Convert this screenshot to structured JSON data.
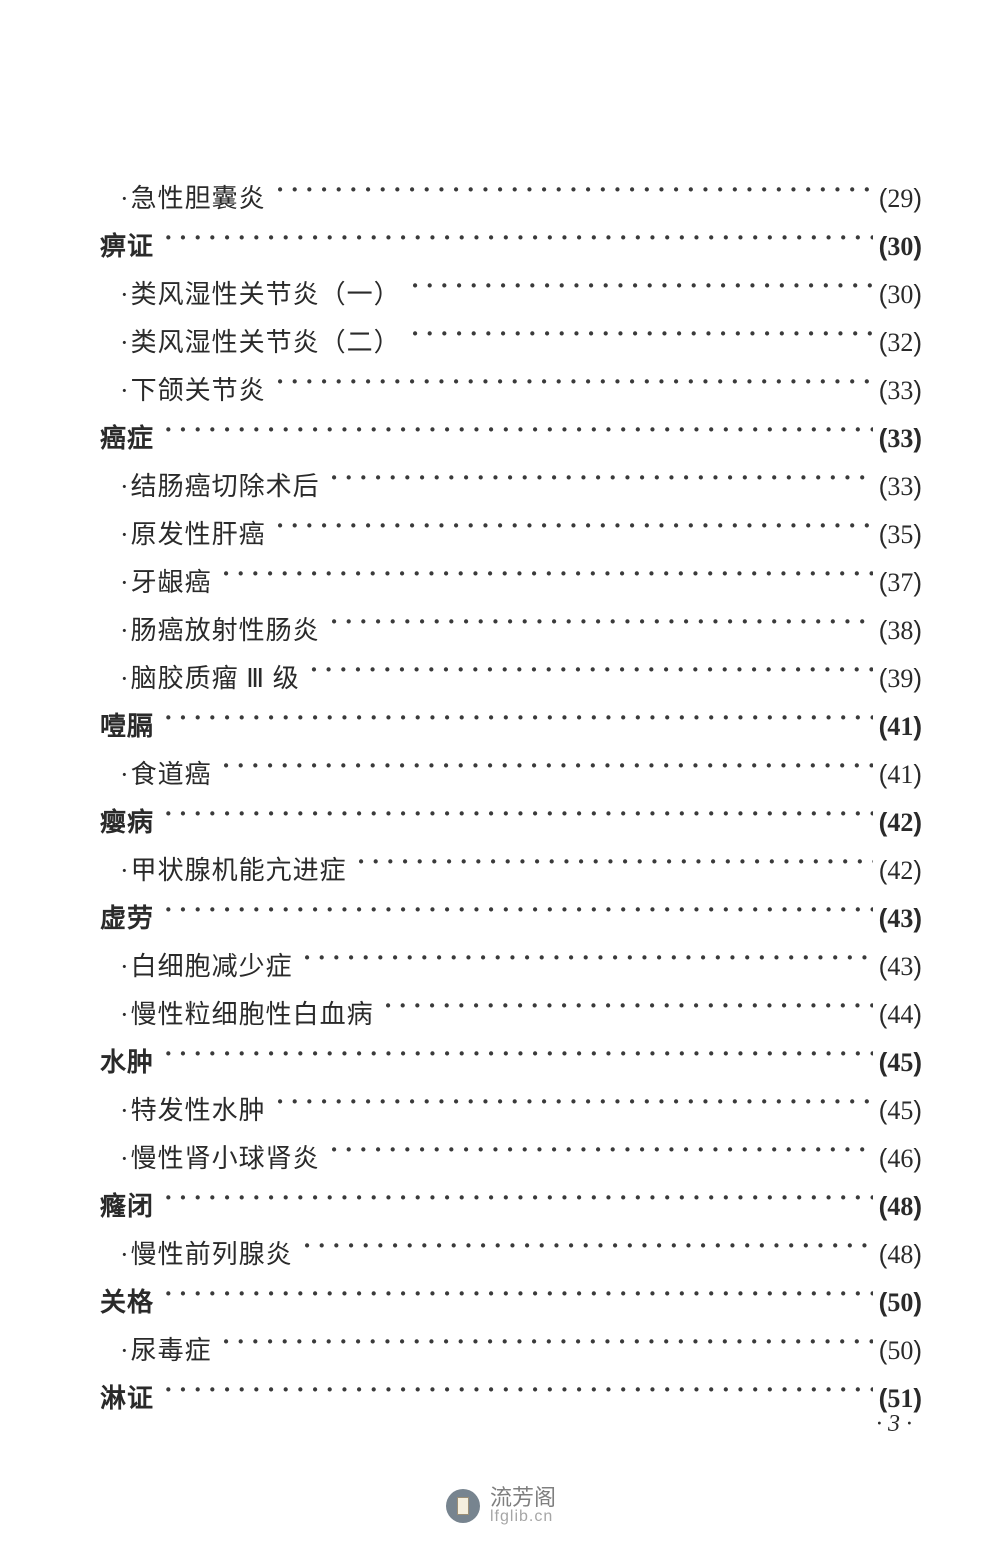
{
  "page": {
    "footer_page_number": "· 3 ·",
    "watermark": {
      "cn": "流芳阁",
      "en": "lfglib.cn"
    }
  },
  "toc": [
    {
      "kind": "item",
      "label": "急性胆囊炎",
      "page": "29"
    },
    {
      "kind": "section",
      "label": "痹证",
      "page": "30"
    },
    {
      "kind": "item",
      "label": "类风湿性关节炎（一）",
      "page": "30"
    },
    {
      "kind": "item",
      "label": "类风湿性关节炎（二）",
      "page": "32"
    },
    {
      "kind": "item",
      "label": "下颌关节炎",
      "page": "33"
    },
    {
      "kind": "section",
      "label": "癌症",
      "page": "33"
    },
    {
      "kind": "item",
      "label": "结肠癌切除术后",
      "page": "33"
    },
    {
      "kind": "item",
      "label": "原发性肝癌",
      "page": "35"
    },
    {
      "kind": "item",
      "label": "牙龈癌",
      "page": "37"
    },
    {
      "kind": "item",
      "label": "肠癌放射性肠炎",
      "page": "38"
    },
    {
      "kind": "item",
      "label": "脑胶质瘤 Ⅲ 级",
      "page": "39"
    },
    {
      "kind": "section",
      "label": "噎膈",
      "page": "41"
    },
    {
      "kind": "item",
      "label": "食道癌",
      "page": "41"
    },
    {
      "kind": "section",
      "label": "瘿病",
      "page": "42"
    },
    {
      "kind": "item",
      "label": "甲状腺机能亢进症",
      "page": "42"
    },
    {
      "kind": "section",
      "label": "虚劳",
      "page": "43"
    },
    {
      "kind": "item",
      "label": "白细胞减少症",
      "page": "43"
    },
    {
      "kind": "item",
      "label": "慢性粒细胞性白血病",
      "page": "44"
    },
    {
      "kind": "section",
      "label": "水肿",
      "page": "45"
    },
    {
      "kind": "item",
      "label": "特发性水肿",
      "page": "45"
    },
    {
      "kind": "item",
      "label": "慢性肾小球肾炎",
      "page": "46"
    },
    {
      "kind": "section",
      "label": "癃闭",
      "page": "48"
    },
    {
      "kind": "item",
      "label": "慢性前列腺炎",
      "page": "48"
    },
    {
      "kind": "section",
      "label": "关格",
      "page": "50"
    },
    {
      "kind": "item",
      "label": "尿毒症",
      "page": "50"
    },
    {
      "kind": "section",
      "label": "淋证",
      "page": "51"
    }
  ]
}
